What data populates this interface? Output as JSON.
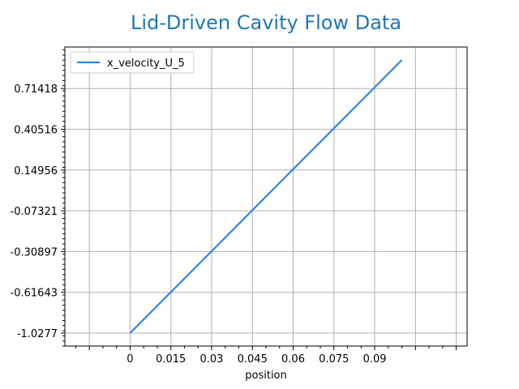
{
  "chart_data": {
    "type": "line",
    "title": "Lid-Driven Cavity Flow Data",
    "xlabel": "position",
    "ylabel": "",
    "x_ticks": [
      0,
      0.015,
      0.03,
      0.045,
      0.06,
      0.075,
      0.09
    ],
    "x_tick_labels": [
      "0",
      "0.015",
      "0.03",
      "0.045",
      "0.06",
      "0.075",
      "0.09"
    ],
    "y_tick_labels": [
      "-1.0277",
      "-0.61643",
      "-0.30897",
      "-0.07321",
      "0.14956",
      "0.40516",
      "0.71418"
    ],
    "xlim": [
      -0.024,
      0.124
    ],
    "grid": true,
    "legend_position": "top-left",
    "series": [
      {
        "name": "x_velocity_U_5",
        "color": "#2e86e8",
        "x": [
          0,
          0.1
        ],
        "y": [
          -1.0277,
          0.92
        ]
      }
    ]
  }
}
